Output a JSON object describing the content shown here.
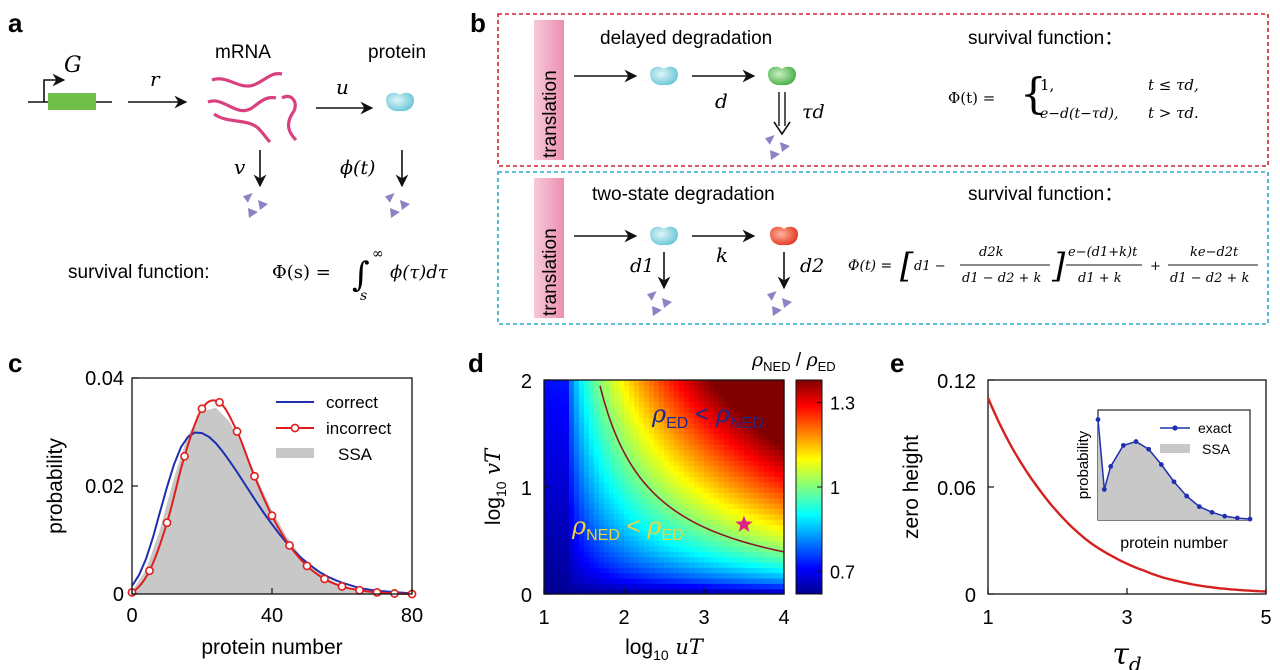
{
  "panels": {
    "a": "a",
    "b": "b",
    "c": "c",
    "d": "d",
    "e": "e"
  },
  "panel_a": {
    "gene": "G",
    "mrna": "mRNA",
    "protein": "protein",
    "r": "r",
    "u": "u",
    "v": "v",
    "phi_t": "ϕ(t)",
    "survival_label": "survival function:",
    "survival_formula_lhs": "Φ(s) = ",
    "survival_formula_int": "∫",
    "survival_formula_lower": "s",
    "survival_formula_upper": "∞",
    "survival_formula_rhs": "ϕ(τ)dτ"
  },
  "panel_b": {
    "translation": "translation",
    "delayed_title": "delayed degradation",
    "two_state_title": "two-state degradation",
    "survival_title": "survival function：",
    "d": "d",
    "tau_d": "τd",
    "d1": "d1",
    "d2": "d2",
    "k": "k",
    "delayed_formula": {
      "lhs": "Φ(t) = ",
      "case1_val": "1,",
      "case1_cond": "t ≤ τd,",
      "case2_val": "e−d(t−τd),",
      "case2_cond": "t > τd."
    },
    "two_state_formula": {
      "lhs": "Φ(t) =",
      "bracket_a": "d1 −",
      "frac1_num": "d2k",
      "frac1_den": "d1 − d2 + k",
      "frac2_num": "e−(d1+k)t",
      "frac2_den": "d1 + k",
      "plus": "+",
      "frac3_num": "ke−d2t",
      "frac3_den": "d1 − d2 + k"
    }
  },
  "chart_data": [
    {
      "id": "c",
      "type": "line",
      "title": "",
      "xlabel": "protein number",
      "ylabel": "probability",
      "xlim": [
        0,
        80
      ],
      "ylim": [
        0,
        0.04
      ],
      "xticks": [
        "0",
        "40",
        "80"
      ],
      "yticks": [
        "0",
        "0.02",
        "0.04"
      ],
      "legend": [
        "correct",
        "incorrect",
        "SSA"
      ],
      "legend_position": "top-right",
      "series": [
        {
          "name": "correct",
          "color": "#1f2fb0",
          "x": [
            0,
            2,
            4,
            6,
            8,
            10,
            12,
            14,
            16,
            18,
            20,
            22,
            24,
            26,
            28,
            30,
            32,
            34,
            36,
            38,
            40,
            42,
            44,
            46,
            48,
            50,
            52,
            54,
            56,
            58,
            60,
            62,
            64,
            66,
            68,
            70,
            72,
            74,
            76,
            78,
            80
          ],
          "y": [
            0.0015,
            0.0035,
            0.0065,
            0.0105,
            0.0152,
            0.0198,
            0.024,
            0.0272,
            0.0291,
            0.0299,
            0.0298,
            0.0291,
            0.0279,
            0.0263,
            0.0245,
            0.0226,
            0.0206,
            0.0186,
            0.0166,
            0.0147,
            0.0129,
            0.0112,
            0.0096,
            0.0082,
            0.0069,
            0.0058,
            0.0048,
            0.0039,
            0.0032,
            0.0026,
            0.0021,
            0.0017,
            0.0013,
            0.001,
            0.0008,
            0.0006,
            0.0005,
            0.0004,
            0.0003,
            0.0002,
            0.0001
          ]
        },
        {
          "name": "incorrect",
          "color": "#e01e1e",
          "x": [
            0,
            5,
            10,
            15,
            20,
            25,
            30,
            35,
            40,
            45,
            50,
            55,
            60,
            65,
            70,
            75,
            80
          ],
          "y": [
            0.0003,
            0.0043,
            0.0132,
            0.0255,
            0.0343,
            0.0355,
            0.0301,
            0.0218,
            0.0145,
            0.009,
            0.0052,
            0.0028,
            0.0014,
            0.0007,
            0.0003,
            0.0001,
            0.0
          ]
        },
        {
          "name": "SSA",
          "color": "#c8c8c8",
          "x": [
            0,
            4,
            8,
            12,
            16,
            20,
            24,
            28,
            32,
            36,
            40,
            44,
            48,
            52,
            56,
            60,
            64,
            68,
            72,
            76,
            80
          ],
          "y": [
            0.0005,
            0.0045,
            0.012,
            0.0215,
            0.0295,
            0.0338,
            0.0345,
            0.0318,
            0.0268,
            0.021,
            0.0155,
            0.0108,
            0.0072,
            0.0046,
            0.0028,
            0.0016,
            0.0009,
            0.0005,
            0.0002,
            0.0001,
            0.0
          ]
        }
      ]
    },
    {
      "id": "d",
      "type": "heatmap",
      "xlabel": "log10 uT",
      "ylabel": "log10 vT",
      "xlim": [
        1,
        4
      ],
      "ylim": [
        0,
        2
      ],
      "xticks": [
        "1",
        "2",
        "3",
        "4"
      ],
      "yticks": [
        "0",
        "1",
        "2"
      ],
      "colorbar_label": "ρNED / ρED",
      "colorbar_range": [
        0.62,
        1.38
      ],
      "colorbar_ticks": [
        "0.7",
        "1",
        "1.3"
      ],
      "contour_level": 1,
      "annotation_upper": "ρED < ρNED",
      "annotation_lower": "ρNED < ρED",
      "marker": {
        "symbol": "star",
        "x": 3.5,
        "y": 0.65,
        "color": "#e0218a"
      }
    },
    {
      "id": "e",
      "type": "line",
      "xlabel": "τd",
      "ylabel": "zero height",
      "xlim": [
        1,
        5
      ],
      "ylim": [
        0,
        0.12
      ],
      "xticks": [
        "1",
        "3",
        "5"
      ],
      "yticks": [
        "0",
        "0.06",
        "0.12"
      ],
      "series": [
        {
          "name": "zero height",
          "color": "#d61f1f",
          "x": [
            1,
            1.25,
            1.5,
            1.75,
            2,
            2.25,
            2.5,
            2.75,
            3,
            3.25,
            3.5,
            3.75,
            4,
            4.25,
            4.5,
            4.75,
            5
          ],
          "y": [
            0.11,
            0.089,
            0.072,
            0.058,
            0.046,
            0.036,
            0.028,
            0.022,
            0.017,
            0.013,
            0.0095,
            0.007,
            0.005,
            0.0036,
            0.0026,
            0.0019,
            0.0014
          ]
        }
      ],
      "inset": {
        "type": "line",
        "xlabel": "protein number",
        "ylabel": "probability",
        "legend": [
          "exact",
          "SSA"
        ],
        "series": [
          {
            "name": "exact",
            "color": "#1f2fb0",
            "x": [
              0,
              1,
              2,
              4,
              6,
              8,
              10,
              12,
              14,
              16,
              18,
              20,
              22,
              24
            ],
            "y": [
              0.105,
              0.032,
              0.056,
              0.078,
              0.082,
              0.074,
              0.058,
              0.04,
              0.025,
              0.014,
              0.008,
              0.004,
              0.002,
              0.001
            ]
          },
          {
            "name": "SSA",
            "color": "#c8c8c8",
            "x": [
              0,
              1,
              2,
              4,
              6,
              8,
              10,
              12,
              14,
              16,
              18,
              20,
              22,
              24
            ],
            "y": [
              0.105,
              0.032,
              0.056,
              0.078,
              0.082,
              0.074,
              0.058,
              0.04,
              0.025,
              0.014,
              0.008,
              0.004,
              0.002,
              0.001
            ]
          }
        ]
      }
    }
  ],
  "colors": {
    "gene_box": "#6fbf4a",
    "mrna": "#d9417e",
    "protein_teal": "#7fd3df",
    "protein_green": "#4cb84a",
    "protein_red": "#e8321e",
    "degraded": "#8a84c4",
    "box_red": "#d3202e",
    "box_blue": "#2aa8cf",
    "translation_bg": "#f0a3c0"
  }
}
